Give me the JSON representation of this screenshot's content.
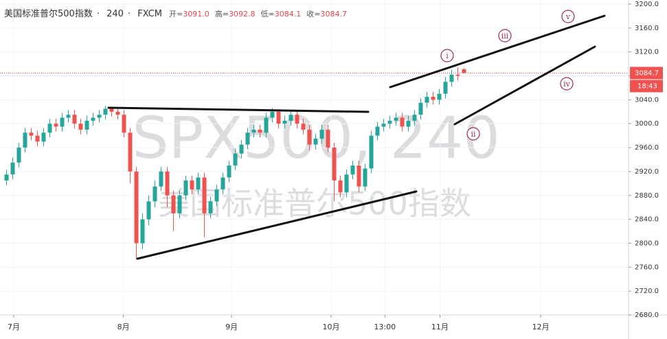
{
  "chart_data": {
    "type": "candlestick",
    "header": {
      "symbol": "美国标准普尔500指数",
      "interval": "240",
      "source": "FXCM",
      "ohlc": [
        {
          "name": "开=",
          "value": "3091.0"
        },
        {
          "name": "高=",
          "value": "3092.8"
        },
        {
          "name": "低=",
          "value": "3084.1"
        },
        {
          "name": "收=",
          "value": "3084.7"
        }
      ]
    },
    "watermark": {
      "title": "SPX500, 240",
      "subtitle": "美国标准普尔500指数"
    },
    "up_color": "#26a69a",
    "down_color": "#ef5350",
    "open": [
      2905,
      2915,
      2935,
      2960,
      2985,
      2980,
      2970,
      2985,
      3000,
      2995,
      3010,
      3015,
      3000,
      2990,
      3005,
      3010,
      3015,
      3025,
      3020,
      3015,
      2985,
      2920,
      2800,
      2840,
      2870,
      2895,
      2920,
      2880,
      2850,
      2880,
      2905,
      2890,
      2910,
      2850,
      2870,
      2890,
      2910,
      2930,
      2950,
      2965,
      2985,
      2990,
      2985,
      3010,
      3020,
      3000,
      3005,
      3015,
      3000,
      2990,
      2965,
      2975,
      2990,
      2960,
      2905,
      2885,
      2915,
      2930,
      2895,
      2925,
      2980,
      2995,
      3000,
      3005,
      3010,
      2995,
      3005,
      3015,
      3035,
      3045,
      3040,
      3050,
      3070,
      3082,
      3091.0
    ],
    "high": [
      2923,
      2943,
      2968,
      2993,
      2993,
      2988,
      2993,
      3008,
      3008,
      3018,
      3023,
      3023,
      3008,
      3013,
      3018,
      3023,
      3030,
      3028,
      3028,
      3023,
      2993,
      2928,
      2850,
      2880,
      2905,
      2928,
      2928,
      2888,
      2888,
      2913,
      2913,
      2918,
      2918,
      2878,
      2898,
      2918,
      2938,
      2958,
      2973,
      2993,
      2998,
      2998,
      3018,
      3026,
      3024,
      3013,
      3022,
      3020,
      3008,
      2998,
      2983,
      2998,
      2998,
      2968,
      2913,
      2923,
      2938,
      2938,
      2933,
      2988,
      3003,
      3008,
      3013,
      3018,
      3018,
      3013,
      3023,
      3043,
      3053,
      3053,
      3058,
      3078,
      3090,
      3095,
      3092.8
    ],
    "low": [
      2897,
      2907,
      2927,
      2952,
      2972,
      2962,
      2962,
      2977,
      2987,
      2987,
      3002,
      2992,
      2982,
      2982,
      2997,
      3002,
      3007,
      3012,
      3007,
      2977,
      2900,
      2773,
      2790,
      2830,
      2860,
      2887,
      2860,
      2820,
      2842,
      2872,
      2882,
      2882,
      2810,
      2842,
      2862,
      2882,
      2902,
      2922,
      2942,
      2957,
      2977,
      2977,
      2977,
      3002,
      2992,
      2992,
      2997,
      2992,
      2982,
      2955,
      2957,
      2967,
      2952,
      2870,
      2877,
      2877,
      2907,
      2885,
      2887,
      2917,
      2972,
      2987,
      2992,
      2997,
      2987,
      2987,
      2997,
      3007,
      3027,
      3032,
      3032,
      3042,
      3062,
      3072,
      3084.1
    ],
    "close": [
      2915,
      2935,
      2960,
      2985,
      2980,
      2970,
      2985,
      3000,
      2995,
      3010,
      3015,
      3000,
      2990,
      3005,
      3010,
      3015,
      3025,
      3020,
      3015,
      2985,
      2920,
      2800,
      2840,
      2870,
      2895,
      2920,
      2880,
      2850,
      2880,
      2905,
      2890,
      2910,
      2850,
      2870,
      2890,
      2910,
      2930,
      2950,
      2965,
      2985,
      2990,
      2985,
      3010,
      3020,
      3000,
      3005,
      3015,
      3000,
      2990,
      2965,
      2975,
      2990,
      2960,
      2905,
      2885,
      2915,
      2930,
      2895,
      2925,
      2980,
      2995,
      3000,
      3005,
      3010,
      2995,
      3005,
      3015,
      3035,
      3045,
      3040,
      3050,
      3070,
      3082,
      3080,
      3084.7
    ],
    "xlim": [
      0,
      101
    ],
    "xticks": [
      {
        "value": 1.67,
        "label": "7月"
      },
      {
        "value": 19.4,
        "label": "8月"
      },
      {
        "value": 36.9,
        "label": "9月"
      },
      {
        "value": 53,
        "label": "10月"
      },
      {
        "value": 61.7,
        "label": "13:00"
      },
      {
        "value": 70.6,
        "label": "11月"
      },
      {
        "value": 86.9,
        "label": "12月"
      }
    ],
    "ylim": [
      2680,
      3200
    ],
    "yticks": [
      {
        "value": 2680,
        "label": "2680.0"
      },
      {
        "value": 2720,
        "label": "2720.0"
      },
      {
        "value": 2760,
        "label": "2760.0"
      },
      {
        "value": 2800,
        "label": "2800.0"
      },
      {
        "value": 2840,
        "label": "2840.0"
      },
      {
        "value": 2880,
        "label": "2880.0"
      },
      {
        "value": 2920,
        "label": "2920.0"
      },
      {
        "value": 2960,
        "label": "2960.0"
      },
      {
        "value": 3000,
        "label": "3000.0"
      },
      {
        "value": 3040,
        "label": "3040.0"
      },
      {
        "value": 3080,
        "label": "3080.0"
      },
      {
        "value": 3120,
        "label": "3120.0"
      },
      {
        "value": 3160,
        "label": "3160.0"
      },
      {
        "value": 3200,
        "label": "3200.0"
      }
    ],
    "last_price": {
      "value": 3084.7,
      "label": "3084.7",
      "color": "#ef5350"
    },
    "countdown": "18:43",
    "annotations": [
      "i",
      "ii",
      "iii",
      "iv",
      "v"
    ]
  }
}
